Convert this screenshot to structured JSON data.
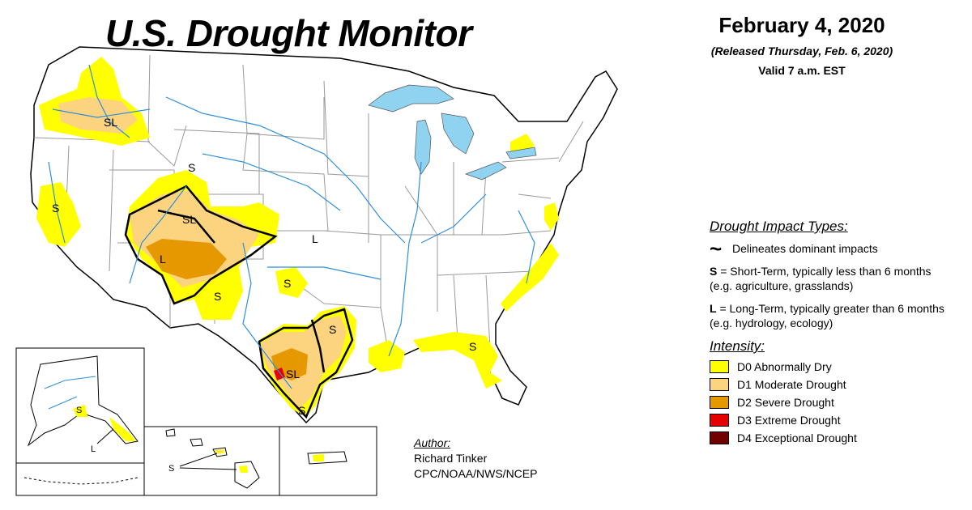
{
  "title": "U.S. Drought Monitor",
  "date": "February 4, 2020",
  "released": "(Released Thursday, Feb. 6, 2020)",
  "valid": "Valid 7 a.m. EST",
  "impact_types": {
    "heading": "Drought Impact Types:",
    "delineates": "Delineates dominant impacts",
    "short_term_key": "S",
    "short_term_text": " = Short-Term, typically less than 6 months (e.g. agriculture, grasslands)",
    "long_term_key": "L",
    "long_term_text": " = Long-Term, typically greater than 6 months (e.g. hydrology, ecology)"
  },
  "intensity": {
    "heading": "Intensity:",
    "levels": [
      {
        "label": "D0 Abnormally Dry",
        "color": "#ffff00"
      },
      {
        "label": "D1 Moderate Drought",
        "color": "#fcd37f"
      },
      {
        "label": "D2 Severe Drought",
        "color": "#e69800"
      },
      {
        "label": "D3 Extreme Drought",
        "color": "#e60000"
      },
      {
        "label": "D4 Exceptional Drought",
        "color": "#730000"
      }
    ]
  },
  "author": {
    "label": "Author:",
    "name": "Richard Tinker",
    "org": "CPC/NOAA/NWS/NCEP"
  },
  "map_labels": {
    "pnw": "SL",
    "wy": "S",
    "nv": "S",
    "co": "SL",
    "az": "L",
    "ks": "L",
    "ok": "S",
    "nm": "S",
    "etx": "S",
    "tx": "SL",
    "stx": "S",
    "fl": "S",
    "ak_s": "S",
    "ak_l": "L",
    "hi": "S"
  },
  "colors": {
    "water": "#8fd3f0",
    "river": "#2f8fd8",
    "border": "#999999"
  }
}
